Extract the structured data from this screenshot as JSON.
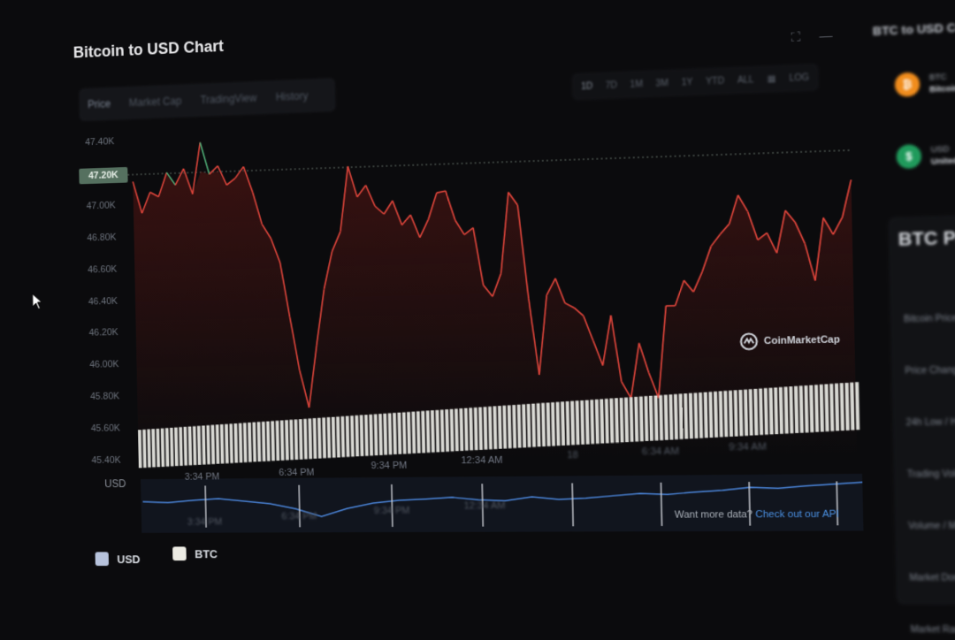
{
  "title": "Bitcoin to USD Chart",
  "tabs": [
    {
      "label": "Price",
      "active": true
    },
    {
      "label": "Market Cap",
      "active": false
    },
    {
      "label": "TradingView",
      "active": false
    },
    {
      "label": "History",
      "active": false
    }
  ],
  "ranges": [
    {
      "label": "1D",
      "active": true
    },
    {
      "label": "7D",
      "active": false
    },
    {
      "label": "1M",
      "active": false
    },
    {
      "label": "3M",
      "active": false
    },
    {
      "label": "1Y",
      "active": false
    },
    {
      "label": "YTD",
      "active": false
    },
    {
      "label": "ALL",
      "active": false
    },
    {
      "label": "LOG",
      "active": false
    }
  ],
  "icons": {
    "calendar": "calendar-icon",
    "expand": "expand-icon",
    "minimize": "minimize-icon",
    "cursor": "mouse-cursor-icon",
    "watermark": "coinmarketcap-logo-icon"
  },
  "price_tag": "47.20K",
  "usd_axis_label": "USD",
  "watermark_text": "CoinMarketCap",
  "more_data": {
    "prefix": "Want more data?",
    "link": "Check out our API"
  },
  "legend": [
    {
      "label": "USD",
      "color": "#b7c3dc"
    },
    {
      "label": "BTC",
      "color": "#ecebe3"
    }
  ],
  "colors": {
    "up": "#4fae77",
    "down": "#e0453b",
    "overview": "#4a84d8",
    "volume": "#d9d9d4"
  },
  "sidebar": {
    "title": "BTC to USD Co",
    "coins": [
      {
        "symbol": "BTC",
        "name": "Bitcoin",
        "color": "#f08c1c",
        "glyph": "₿"
      },
      {
        "symbol": "USD",
        "name": "United S",
        "color": "#1f9a5b",
        "glyph": "$"
      }
    ],
    "heading": "BTC Price",
    "rows": [
      "Bitcoin Price",
      "Price Change",
      "24h Low / H",
      "Trading Volume",
      "Volume / Mark",
      "Market Dominan",
      "Market Rank"
    ]
  },
  "chart_data": {
    "type": "line",
    "title": "Bitcoin to USD Chart",
    "ylabel": "USD",
    "ylim": [
      45400,
      47400
    ],
    "yticks": [
      "47.40K",
      "47.20K",
      "47.00K",
      "46.80K",
      "46.60K",
      "46.40K",
      "46.20K",
      "46.00K",
      "45.80K",
      "45.60K",
      "45.40K"
    ],
    "xticks_main": [
      "3:34 PM",
      "6:34 PM",
      "9:34 PM",
      "12:34 AM",
      "18",
      "6:34 AM",
      "9:34 AM"
    ],
    "xticks_overview": [
      "3:34 PM",
      "6:34 PM",
      "9:34 PM",
      "12:34 AM"
    ],
    "reference_value": 47200,
    "x": [
      0,
      1,
      2,
      3,
      4,
      5,
      6,
      7,
      8,
      9,
      10,
      11,
      12,
      13,
      14,
      15,
      16,
      17,
      18,
      19,
      20,
      21,
      22,
      23,
      24,
      25,
      26,
      27,
      28,
      29,
      30,
      31,
      32,
      33,
      34,
      35,
      36,
      37,
      38,
      39,
      40,
      41,
      42,
      43,
      44,
      45,
      46,
      47,
      48,
      49,
      50,
      51,
      52,
      53,
      54,
      55,
      56,
      57,
      58,
      59,
      60,
      61,
      62,
      63,
      64,
      65,
      66,
      67,
      68,
      69,
      70,
      71,
      72,
      73,
      74,
      75,
      76,
      77,
      78,
      79,
      80
    ],
    "series": [
      {
        "name": "USD",
        "values": [
          47150,
          46950,
          47080,
          47050,
          47200,
          47120,
          47220,
          47060,
          47380,
          47180,
          47230,
          47110,
          47150,
          47220,
          47060,
          46860,
          46770,
          46620,
          46280,
          45950,
          45720,
          46100,
          46450,
          46680,
          46800,
          47200,
          47010,
          47080,
          46950,
          46900,
          46980,
          46830,
          46890,
          46750,
          46860,
          47020,
          47030,
          46850,
          46760,
          46800,
          46450,
          46380,
          46520,
          47010,
          46930,
          46360,
          45900,
          46380,
          46480,
          46330,
          46300,
          46250,
          46100,
          45950,
          46250,
          45850,
          45750,
          46080,
          45900,
          45750,
          46300,
          46300,
          46450,
          46380,
          46500,
          46650,
          46720,
          46780,
          46950,
          46850,
          46680,
          46720,
          46600,
          46850,
          46780,
          46650,
          46430,
          46800,
          46700,
          46800,
          47020
        ]
      }
    ],
    "overview_values": [
      0.5,
      0.48,
      0.52,
      0.55,
      0.5,
      0.45,
      0.35,
      0.2,
      0.35,
      0.45,
      0.5,
      0.52,
      0.55,
      0.5,
      0.48,
      0.55,
      0.5,
      0.52,
      0.56,
      0.6,
      0.58,
      0.62,
      0.65,
      0.7,
      0.68,
      0.72,
      0.75,
      0.78
    ],
    "volume_bar_count": 150,
    "grid": false
  }
}
